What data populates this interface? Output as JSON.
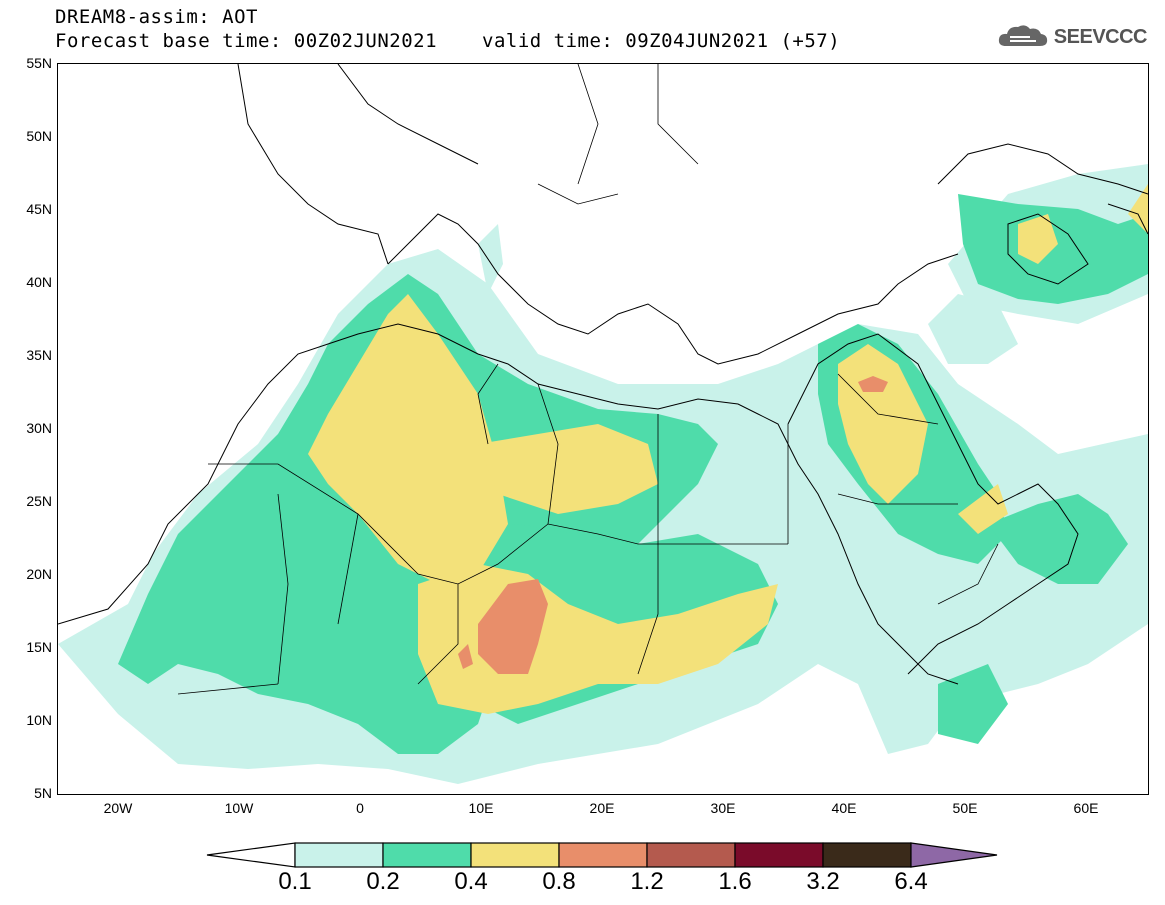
{
  "header": {
    "title_line1": "DREAM8-assim: AOT",
    "title_line2": "Forecast base time: 00Z02JUN2021",
    "valid_line": "valid time: 09Z04JUN2021 (+57)",
    "logo_text": "SEEVCCC"
  },
  "map": {
    "lat_labels": [
      "55N",
      "50N",
      "45N",
      "40N",
      "35N",
      "30N",
      "25N",
      "20N",
      "15N",
      "10N",
      "5N"
    ],
    "lon_labels": [
      "20W",
      "10W",
      "0",
      "10E",
      "20E",
      "30E",
      "40E",
      "50E",
      "60E"
    ],
    "lon_range": [
      -25,
      65
    ],
    "lat_range": [
      5,
      55
    ]
  },
  "colorbar": {
    "ticks": [
      "0.1",
      "0.2",
      "0.4",
      "0.8",
      "1.2",
      "1.6",
      "3.2",
      "6.4"
    ],
    "colors": [
      "#c9f2ea",
      "#4fdcaa",
      "#f3e17a",
      "#e88e6a",
      "#b45a4e",
      "#7a0b2a",
      "#3a2a1a",
      "#8e68a6"
    ],
    "below_color": "#ffffff"
  }
}
